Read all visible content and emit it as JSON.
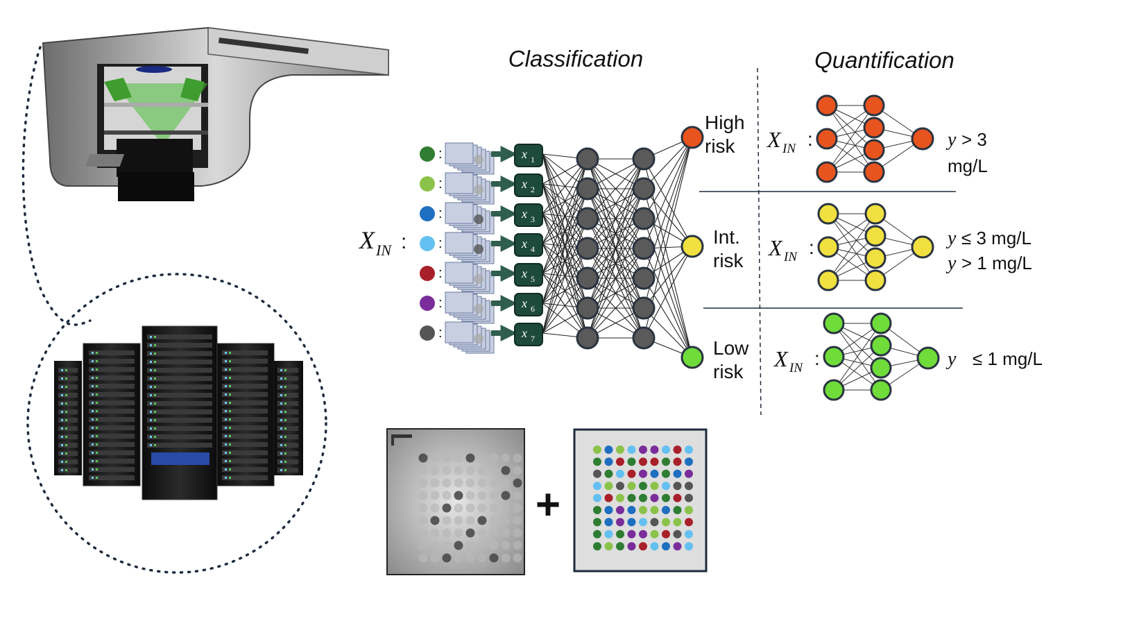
{
  "headers": {
    "classification": "Classification",
    "quantification": "Quantification"
  },
  "input_label": {
    "main": "X",
    "sub": "IN",
    "suffix": ":"
  },
  "inputs": [
    {
      "color": "#2e7d32",
      "var": "x",
      "sub": "1"
    },
    {
      "color": "#8bc34a",
      "var": "x",
      "sub": "2"
    },
    {
      "color": "#1e6fc0",
      "var": "x",
      "sub": "3"
    },
    {
      "color": "#64c0f0",
      "var": "x",
      "sub": "4"
    },
    {
      "color": "#a8202a",
      "var": "x",
      "sub": "5"
    },
    {
      "color": "#7a2d9a",
      "var": "x",
      "sub": "6"
    },
    {
      "color": "#555555",
      "var": "x",
      "sub": "7"
    }
  ],
  "outputs": [
    {
      "line1": "High",
      "line2": "risk",
      "color": "#e8541e"
    },
    {
      "line1": "Int.",
      "line2": "risk",
      "color": "#f0e040"
    },
    {
      "line1": "Low",
      "line2": "risk",
      "color": "#6fdc3a"
    }
  ],
  "regressors": [
    {
      "color": "#e8541e",
      "cond1_var": "y",
      "cond1": "> 3",
      "cond1_tail": "mg/L",
      "cond2_var": "",
      "cond2": ""
    },
    {
      "color": "#f0e040",
      "cond1_var": "y",
      "cond1": "≤ 3 mg/L",
      "cond1_tail": "",
      "cond2_var": "y",
      "cond2": "> 1 mg/L"
    },
    {
      "color": "#6fdc3a",
      "cond1_var": "y",
      "cond1": "≤ 1 mg/L",
      "cond1_tail": "",
      "cond2_var": "",
      "cond2": ""
    }
  ],
  "plus": "+",
  "spot_colors": [
    "#2e7d32",
    "#8bc34a",
    "#1e6fc0",
    "#64c0f0",
    "#a8202a",
    "#7a2d9a",
    "#555555"
  ],
  "hidden_node_color": "#5a5a5a",
  "node_stroke": "#2a3340",
  "icons": [
    "optical-reader-icon",
    "server-rack-icon"
  ]
}
